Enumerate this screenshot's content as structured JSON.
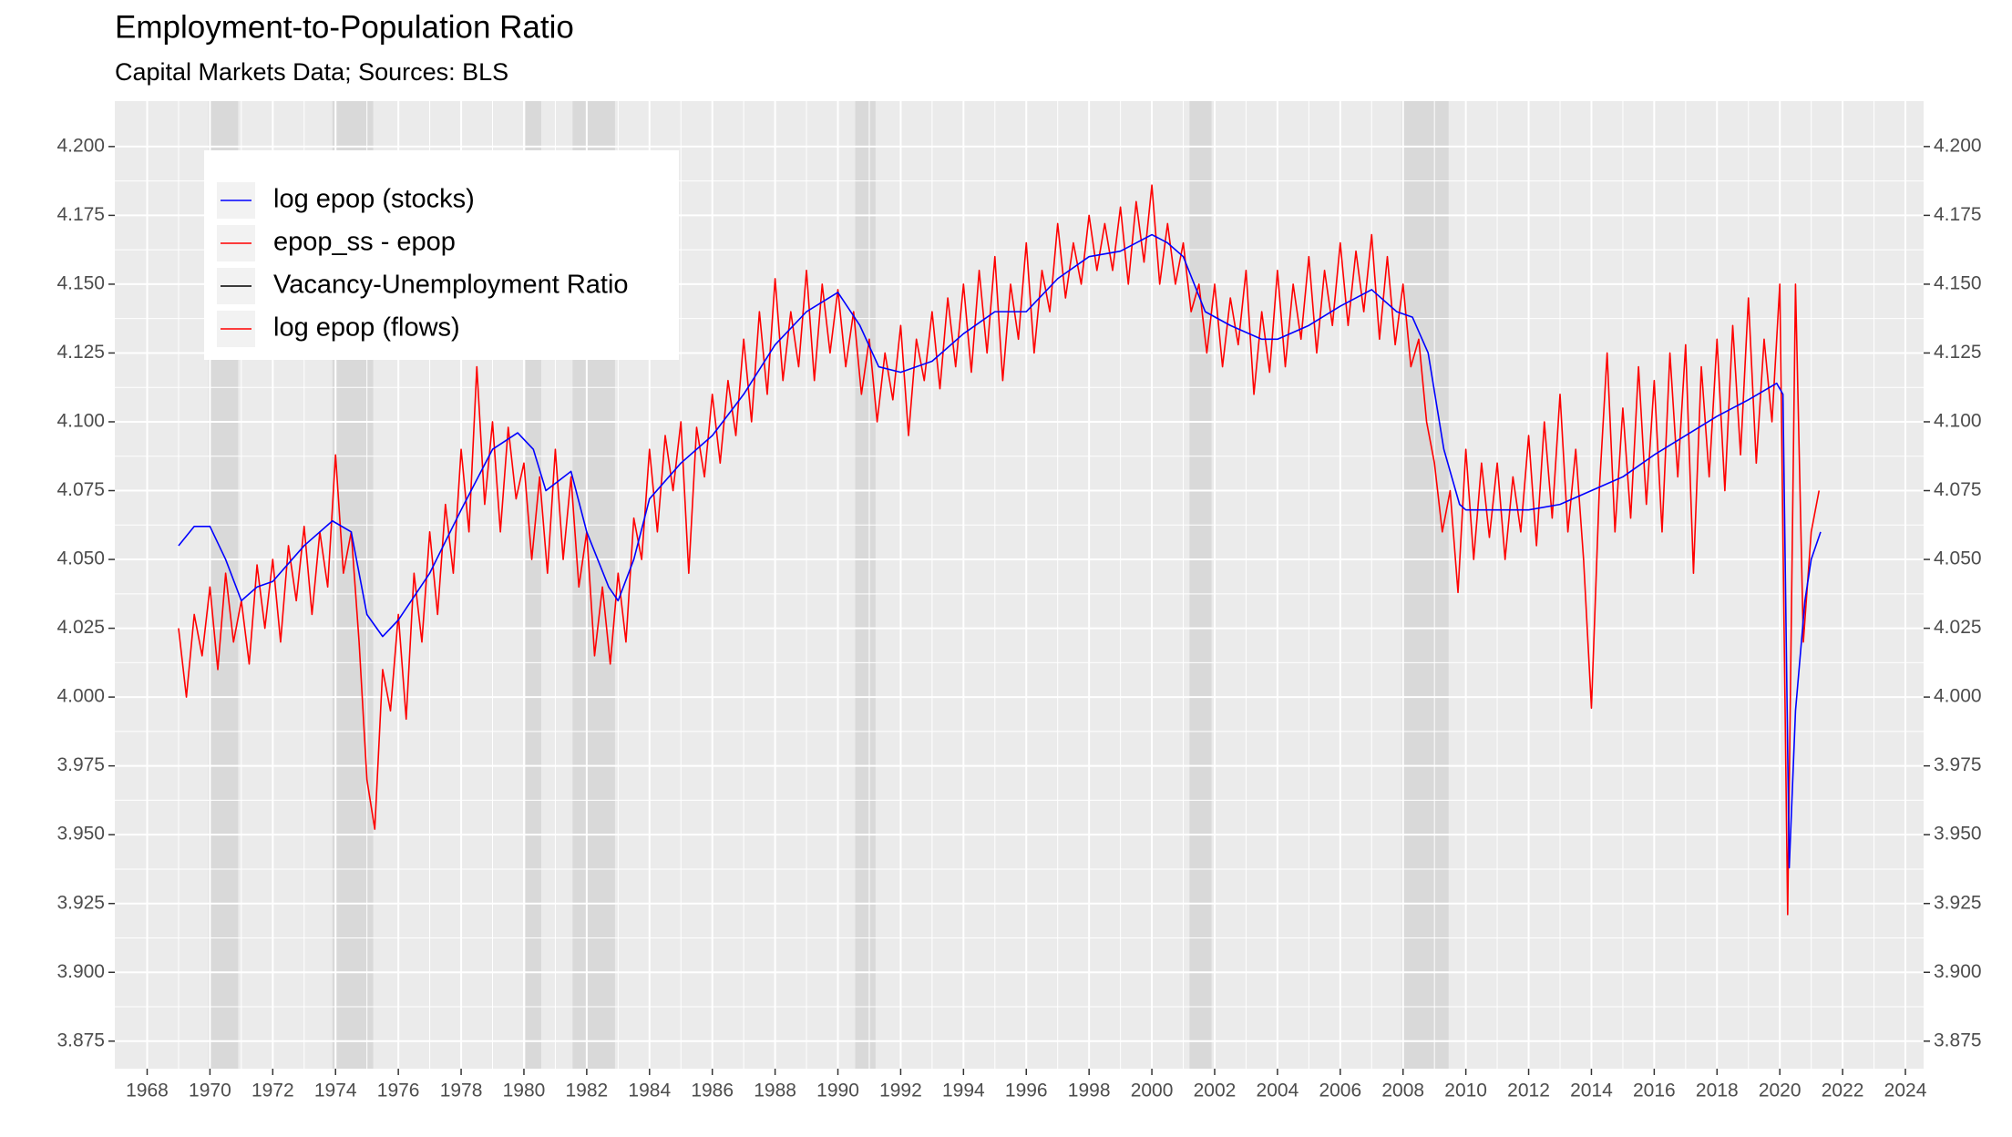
{
  "chart_data": {
    "type": "line",
    "title": "Employment-to-Population Ratio",
    "subtitle": "Capital Markets Data; Sources: BLS",
    "xlim": [
      1966.97,
      2024.58
    ],
    "xticks": [
      1968,
      1970,
      1972,
      1974,
      1976,
      1978,
      1980,
      1982,
      1984,
      1986,
      1988,
      1990,
      1992,
      1994,
      1996,
      1998,
      2000,
      2002,
      2004,
      2006,
      2008,
      2010,
      2012,
      2014,
      2016,
      2018,
      2020,
      2022,
      2024
    ],
    "ylim": [
      3.865,
      4.2165
    ],
    "yticks": [
      {
        "value": 3.875,
        "label": "3.875"
      },
      {
        "value": 3.9,
        "label": "3.900"
      },
      {
        "value": 3.925,
        "label": "3.925"
      },
      {
        "value": 3.95,
        "label": "3.950"
      },
      {
        "value": 3.975,
        "label": "3.975"
      },
      {
        "value": 4.0,
        "label": "4.000"
      },
      {
        "value": 4.025,
        "label": "4.025"
      },
      {
        "value": 4.05,
        "label": "4.050"
      },
      {
        "value": 4.075,
        "label": "4.075"
      },
      {
        "value": 4.1,
        "label": "4.100"
      },
      {
        "value": 4.125,
        "label": "4.125"
      },
      {
        "value": 4.15,
        "label": "4.150"
      },
      {
        "value": 4.175,
        "label": "4.175"
      },
      {
        "value": 4.2,
        "label": "4.200"
      }
    ],
    "y2lim": [
      3.865,
      4.2165
    ],
    "y2ticks": [
      {
        "value": 3.875,
        "label": "3.875"
      },
      {
        "value": 3.9,
        "label": "3.900"
      },
      {
        "value": 3.925,
        "label": "3.925"
      },
      {
        "value": 3.95,
        "label": "3.950"
      },
      {
        "value": 3.975,
        "label": "3.975"
      },
      {
        "value": 4.0,
        "label": "4.000"
      },
      {
        "value": 4.025,
        "label": "4.025"
      },
      {
        "value": 4.05,
        "label": "4.050"
      },
      {
        "value": 4.075,
        "label": "4.075"
      },
      {
        "value": 4.1,
        "label": "4.100"
      },
      {
        "value": 4.125,
        "label": "4.125"
      },
      {
        "value": 4.15,
        "label": "4.150"
      },
      {
        "value": 4.175,
        "label": "4.175"
      },
      {
        "value": 4.2,
        "label": "4.200"
      }
    ],
    "grid": true,
    "legend": "top-left",
    "shaded_periods": [
      [
        1969.95,
        1970.9
      ],
      [
        1973.9,
        1975.2
      ],
      [
        1980.05,
        1980.55
      ],
      [
        1981.55,
        1982.9
      ],
      [
        1990.55,
        1991.2
      ],
      [
        2001.2,
        2001.9
      ],
      [
        2007.95,
        2009.45
      ]
    ],
    "series": [
      {
        "name": "log epop (stocks)",
        "color": "#0000ff",
        "x": [
          1969.0,
          1969.5,
          1970.0,
          1970.5,
          1971.0,
          1971.5,
          1972.0,
          1973.0,
          1973.9,
          1974.5,
          1975.0,
          1975.5,
          1976.0,
          1977.0,
          1978.0,
          1979.0,
          1979.8,
          1980.3,
          1980.7,
          1981.5,
          1982.0,
          1982.7,
          1983.0,
          1983.5,
          1984.0,
          1985.0,
          1986.0,
          1987.0,
          1988.0,
          1989.0,
          1990.0,
          1990.7,
          1991.3,
          1992.0,
          1993.0,
          1994.0,
          1995.0,
          1996.0,
          1997.0,
          1998.0,
          1999.0,
          2000.0,
          2000.5,
          2001.0,
          2001.7,
          2002.5,
          2003.5,
          2004.0,
          2005.0,
          2006.0,
          2007.0,
          2007.8,
          2008.3,
          2008.8,
          2009.3,
          2009.8,
          2010.0,
          2011.0,
          2012.0,
          2013.0,
          2014.0,
          2015.0,
          2016.0,
          2017.0,
          2018.0,
          2019.0,
          2019.9,
          2020.1,
          2020.3,
          2020.5,
          2020.8,
          2021.0,
          2021.3
        ],
        "values": [
          4.055,
          4.062,
          4.062,
          4.05,
          4.035,
          4.04,
          4.042,
          4.055,
          4.064,
          4.06,
          4.03,
          4.022,
          4.028,
          4.045,
          4.068,
          4.09,
          4.096,
          4.09,
          4.075,
          4.082,
          4.06,
          4.04,
          4.035,
          4.05,
          4.072,
          4.085,
          4.095,
          4.11,
          4.128,
          4.14,
          4.147,
          4.135,
          4.12,
          4.118,
          4.122,
          4.132,
          4.14,
          4.14,
          4.152,
          4.16,
          4.162,
          4.168,
          4.165,
          4.16,
          4.14,
          4.135,
          4.13,
          4.13,
          4.135,
          4.142,
          4.148,
          4.14,
          4.138,
          4.125,
          4.09,
          4.07,
          4.068,
          4.068,
          4.068,
          4.07,
          4.075,
          4.08,
          4.088,
          4.095,
          4.102,
          4.108,
          4.114,
          4.11,
          3.938,
          3.995,
          4.035,
          4.05,
          4.06
        ]
      },
      {
        "name": "epop_ss - epop",
        "color": "#ff0000",
        "x": [],
        "values": []
      },
      {
        "name": "Vacancy-Unemployment Ratio",
        "color": "#000000",
        "x": [],
        "values": []
      },
      {
        "name": "log epop (flows)",
        "color": "#ff0000",
        "x": [
          1969.0,
          1969.25,
          1969.5,
          1969.75,
          1970.0,
          1970.25,
          1970.5,
          1970.75,
          1971.0,
          1971.25,
          1971.5,
          1971.75,
          1972.0,
          1972.25,
          1972.5,
          1972.75,
          1973.0,
          1973.25,
          1973.5,
          1973.75,
          1974.0,
          1974.25,
          1974.5,
          1974.75,
          1975.0,
          1975.25,
          1975.5,
          1975.75,
          1976.0,
          1976.25,
          1976.5,
          1976.75,
          1977.0,
          1977.25,
          1977.5,
          1977.75,
          1978.0,
          1978.25,
          1978.5,
          1978.75,
          1979.0,
          1979.25,
          1979.5,
          1979.75,
          1980.0,
          1980.25,
          1980.5,
          1980.75,
          1981.0,
          1981.25,
          1981.5,
          1981.75,
          1982.0,
          1982.25,
          1982.5,
          1982.75,
          1983.0,
          1983.25,
          1983.5,
          1983.75,
          1984.0,
          1984.25,
          1984.5,
          1984.75,
          1985.0,
          1985.25,
          1985.5,
          1985.75,
          1986.0,
          1986.25,
          1986.5,
          1986.75,
          1987.0,
          1987.25,
          1987.5,
          1987.75,
          1988.0,
          1988.25,
          1988.5,
          1988.75,
          1989.0,
          1989.25,
          1989.5,
          1989.75,
          1990.0,
          1990.25,
          1990.5,
          1990.75,
          1991.0,
          1991.25,
          1991.5,
          1991.75,
          1992.0,
          1992.25,
          1992.5,
          1992.75,
          1993.0,
          1993.25,
          1993.5,
          1993.75,
          1994.0,
          1994.25,
          1994.5,
          1994.75,
          1995.0,
          1995.25,
          1995.5,
          1995.75,
          1996.0,
          1996.25,
          1996.5,
          1996.75,
          1997.0,
          1997.25,
          1997.5,
          1997.75,
          1998.0,
          1998.25,
          1998.5,
          1998.75,
          1999.0,
          1999.25,
          1999.5,
          1999.75,
          2000.0,
          2000.25,
          2000.5,
          2000.75,
          2001.0,
          2001.25,
          2001.5,
          2001.75,
          2002.0,
          2002.25,
          2002.5,
          2002.75,
          2003.0,
          2003.25,
          2003.5,
          2003.75,
          2004.0,
          2004.25,
          2004.5,
          2004.75,
          2005.0,
          2005.25,
          2005.5,
          2005.75,
          2006.0,
          2006.25,
          2006.5,
          2006.75,
          2007.0,
          2007.25,
          2007.5,
          2007.75,
          2008.0,
          2008.25,
          2008.5,
          2008.75,
          2009.0,
          2009.25,
          2009.5,
          2009.75,
          2010.0,
          2010.25,
          2010.5,
          2010.75,
          2011.0,
          2011.25,
          2011.5,
          2011.75,
          2012.0,
          2012.25,
          2012.5,
          2012.75,
          2013.0,
          2013.25,
          2013.5,
          2013.75,
          2014.0,
          2014.25,
          2014.5,
          2014.75,
          2015.0,
          2015.25,
          2015.5,
          2015.75,
          2016.0,
          2016.25,
          2016.5,
          2016.75,
          2017.0,
          2017.25,
          2017.5,
          2017.75,
          2018.0,
          2018.25,
          2018.5,
          2018.75,
          2019.0,
          2019.25,
          2019.5,
          2019.75,
          2020.0,
          2020.25,
          2020.5,
          2020.75,
          2021.0,
          2021.25
        ],
        "values": [
          4.025,
          4.0,
          4.03,
          4.015,
          4.04,
          4.01,
          4.045,
          4.02,
          4.035,
          4.012,
          4.048,
          4.025,
          4.05,
          4.02,
          4.055,
          4.035,
          4.062,
          4.03,
          4.06,
          4.04,
          4.088,
          4.045,
          4.06,
          4.02,
          3.97,
          3.952,
          4.01,
          3.995,
          4.03,
          3.992,
          4.045,
          4.02,
          4.06,
          4.03,
          4.07,
          4.045,
          4.09,
          4.06,
          4.12,
          4.07,
          4.1,
          4.06,
          4.098,
          4.072,
          4.085,
          4.05,
          4.08,
          4.045,
          4.09,
          4.05,
          4.08,
          4.04,
          4.06,
          4.015,
          4.04,
          4.012,
          4.045,
          4.02,
          4.065,
          4.05,
          4.09,
          4.06,
          4.095,
          4.075,
          4.1,
          4.045,
          4.098,
          4.08,
          4.11,
          4.085,
          4.115,
          4.095,
          4.13,
          4.1,
          4.14,
          4.11,
          4.152,
          4.115,
          4.14,
          4.12,
          4.155,
          4.115,
          4.15,
          4.125,
          4.148,
          4.12,
          4.14,
          4.11,
          4.13,
          4.1,
          4.125,
          4.108,
          4.135,
          4.095,
          4.13,
          4.115,
          4.14,
          4.112,
          4.145,
          4.12,
          4.15,
          4.118,
          4.155,
          4.125,
          4.16,
          4.115,
          4.15,
          4.13,
          4.165,
          4.125,
          4.155,
          4.14,
          4.172,
          4.145,
          4.165,
          4.15,
          4.175,
          4.155,
          4.172,
          4.155,
          4.178,
          4.15,
          4.18,
          4.158,
          4.186,
          4.15,
          4.172,
          4.15,
          4.165,
          4.14,
          4.15,
          4.125,
          4.15,
          4.12,
          4.145,
          4.128,
          4.155,
          4.11,
          4.14,
          4.118,
          4.155,
          4.12,
          4.15,
          4.13,
          4.16,
          4.125,
          4.155,
          4.135,
          4.165,
          4.135,
          4.162,
          4.14,
          4.168,
          4.13,
          4.16,
          4.128,
          4.15,
          4.12,
          4.13,
          4.1,
          4.085,
          4.06,
          4.075,
          4.038,
          4.09,
          4.05,
          4.085,
          4.058,
          4.085,
          4.05,
          4.08,
          4.06,
          4.095,
          4.055,
          4.1,
          4.065,
          4.11,
          4.06,
          4.09,
          4.05,
          3.996,
          4.075,
          4.125,
          4.06,
          4.105,
          4.065,
          4.12,
          4.07,
          4.115,
          4.06,
          4.125,
          4.08,
          4.128,
          4.045,
          4.12,
          4.08,
          4.13,
          4.075,
          4.135,
          4.088,
          4.145,
          4.085,
          4.13,
          4.1,
          4.15,
          3.921,
          4.15,
          4.02,
          4.06,
          4.075
        ]
      }
    ]
  }
}
